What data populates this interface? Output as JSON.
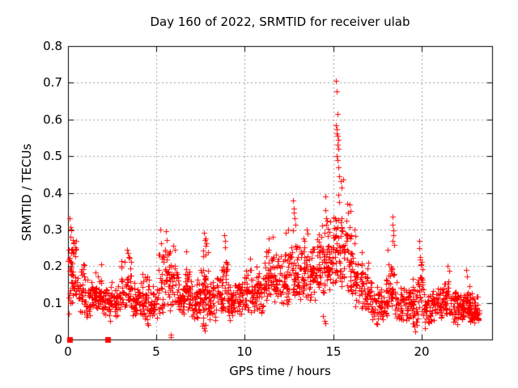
{
  "window": {
    "background": "#ffffff",
    "text_color": "#000000",
    "border_color": "#000000"
  },
  "chart": {
    "title": "Day 160 of 2022, SRMTID for receiver ulab",
    "xlabel": "GPS time / hours",
    "ylabel": "SRMTID / TECUs"
  },
  "chart_data": {
    "type": "scatter",
    "title": "Day 160 of 2022, SRMTID for receiver ulab",
    "xlabel": "GPS time / hours",
    "ylabel": "SRMTID / TECUs",
    "xlim": [
      0,
      24
    ],
    "ylim": [
      0,
      0.8
    ],
    "xticks": {
      "values": [
        0,
        5,
        10,
        15,
        20
      ],
      "labels": [
        "0",
        "5",
        "10",
        "15",
        "20"
      ]
    },
    "yticks": {
      "values": [
        0,
        0.1,
        0.2,
        0.3,
        0.4,
        0.5,
        0.6,
        0.7,
        0.8
      ],
      "labels": [
        "0",
        "0.1",
        "0.2",
        "0.3",
        "0.4",
        "0.5",
        "0.6",
        "0.7",
        "0.8"
      ]
    },
    "grid": true,
    "grid_style": "dashed",
    "grid_color": "#a0a0a0",
    "legend": "none",
    "marker": {
      "shape": "plus",
      "color": "#ff0000",
      "size": 7
    },
    "seed": 42,
    "bands_format": "[h_start, h_end, y_min, y_max, count]",
    "bands": [
      [
        0.02,
        0.15,
        0.05,
        0.33,
        12
      ],
      [
        0.1,
        0.45,
        0.2,
        0.3,
        14
      ],
      [
        0.15,
        0.6,
        0.08,
        0.26,
        30
      ],
      [
        0.6,
        1.0,
        0.07,
        0.22,
        34
      ],
      [
        1.0,
        1.5,
        0.06,
        0.17,
        40
      ],
      [
        1.5,
        2.0,
        0.06,
        0.2,
        40
      ],
      [
        2.0,
        2.5,
        0.05,
        0.16,
        40
      ],
      [
        2.5,
        3.0,
        0.06,
        0.16,
        36
      ],
      [
        3.0,
        3.6,
        0.07,
        0.24,
        44
      ],
      [
        3.6,
        4.1,
        0.05,
        0.16,
        40
      ],
      [
        4.1,
        4.6,
        0.04,
        0.19,
        40
      ],
      [
        4.6,
        5.1,
        0.05,
        0.16,
        38
      ],
      [
        5.1,
        5.45,
        0.07,
        0.28,
        26
      ],
      [
        5.45,
        5.75,
        0.08,
        0.3,
        26
      ],
      [
        5.75,
        6.25,
        0.07,
        0.27,
        36
      ],
      [
        6.25,
        6.6,
        0.06,
        0.18,
        32
      ],
      [
        6.6,
        6.95,
        0.07,
        0.24,
        30
      ],
      [
        6.95,
        7.35,
        0.05,
        0.18,
        34
      ],
      [
        7.35,
        7.62,
        0.06,
        0.22,
        26
      ],
      [
        7.62,
        7.95,
        0.03,
        0.28,
        38
      ],
      [
        7.95,
        8.4,
        0.05,
        0.17,
        36
      ],
      [
        8.4,
        8.75,
        0.06,
        0.2,
        30
      ],
      [
        8.75,
        9.05,
        0.07,
        0.27,
        26
      ],
      [
        9.05,
        9.55,
        0.05,
        0.18,
        40
      ],
      [
        9.55,
        10.05,
        0.06,
        0.18,
        40
      ],
      [
        10.05,
        10.55,
        0.07,
        0.21,
        40
      ],
      [
        10.55,
        11.05,
        0.07,
        0.2,
        40
      ],
      [
        11.05,
        11.55,
        0.08,
        0.26,
        42
      ],
      [
        11.55,
        12.05,
        0.08,
        0.26,
        42
      ],
      [
        12.05,
        12.55,
        0.09,
        0.28,
        42
      ],
      [
        12.55,
        13.05,
        0.1,
        0.31,
        42
      ],
      [
        13.05,
        13.55,
        0.1,
        0.29,
        42
      ],
      [
        13.55,
        14.05,
        0.1,
        0.28,
        42
      ],
      [
        14.05,
        14.55,
        0.1,
        0.31,
        44
      ],
      [
        14.55,
        15.0,
        0.12,
        0.34,
        44
      ],
      [
        15.0,
        15.4,
        0.15,
        0.42,
        40
      ],
      [
        15.4,
        15.8,
        0.12,
        0.37,
        34
      ],
      [
        15.8,
        16.2,
        0.1,
        0.35,
        34
      ],
      [
        16.2,
        16.7,
        0.08,
        0.25,
        38
      ],
      [
        16.7,
        17.2,
        0.06,
        0.2,
        38
      ],
      [
        17.2,
        17.7,
        0.04,
        0.16,
        38
      ],
      [
        17.7,
        18.1,
        0.05,
        0.17,
        34
      ],
      [
        18.1,
        18.48,
        0.08,
        0.25,
        30
      ],
      [
        18.48,
        19.0,
        0.05,
        0.16,
        38
      ],
      [
        19.0,
        19.5,
        0.04,
        0.15,
        38
      ],
      [
        19.5,
        19.82,
        0.03,
        0.17,
        28
      ],
      [
        19.82,
        20.12,
        0.07,
        0.25,
        26
      ],
      [
        20.12,
        20.6,
        0.04,
        0.13,
        38
      ],
      [
        20.6,
        21.1,
        0.05,
        0.16,
        40
      ],
      [
        21.1,
        21.6,
        0.06,
        0.19,
        40
      ],
      [
        21.6,
        22.1,
        0.04,
        0.15,
        40
      ],
      [
        22.1,
        22.45,
        0.05,
        0.14,
        34
      ],
      [
        22.45,
        22.75,
        0.06,
        0.18,
        32
      ],
      [
        22.75,
        23.25,
        0.04,
        0.13,
        56
      ]
    ],
    "points": [
      [
        0.1,
        0.33
      ],
      [
        0.16,
        0.307
      ],
      [
        0.2,
        0.298
      ],
      [
        0.3,
        0.265
      ],
      [
        0.4,
        0.252
      ],
      [
        1.9,
        0.205
      ],
      [
        3.35,
        0.245
      ],
      [
        3.4,
        0.235
      ],
      [
        3.45,
        0.225
      ],
      [
        4.5,
        0.045
      ],
      [
        4.55,
        0.04
      ],
      [
        5.2,
        0.3
      ],
      [
        5.55,
        0.295
      ],
      [
        5.6,
        0.27
      ],
      [
        5.95,
        0.255
      ],
      [
        6.05,
        0.245
      ],
      [
        6.7,
        0.24
      ],
      [
        7.7,
        0.29
      ],
      [
        7.74,
        0.27
      ],
      [
        7.78,
        0.255
      ],
      [
        7.65,
        0.045
      ],
      [
        7.7,
        0.03
      ],
      [
        7.75,
        0.025
      ],
      [
        7.8,
        0.04
      ],
      [
        8.85,
        0.285
      ],
      [
        8.88,
        0.268
      ],
      [
        8.9,
        0.252
      ],
      [
        10.3,
        0.22
      ],
      [
        11.35,
        0.275
      ],
      [
        11.6,
        0.28
      ],
      [
        12.3,
        0.29
      ],
      [
        12.45,
        0.3
      ],
      [
        12.75,
        0.38
      ],
      [
        12.78,
        0.358
      ],
      [
        12.8,
        0.345
      ],
      [
        12.84,
        0.33
      ],
      [
        12.88,
        0.312
      ],
      [
        13.5,
        0.3
      ],
      [
        13.56,
        0.288
      ],
      [
        14.4,
        0.31
      ],
      [
        14.55,
        0.39
      ],
      [
        14.58,
        0.352
      ],
      [
        14.62,
        0.33
      ],
      [
        14.7,
        0.302
      ],
      [
        14.45,
        0.065
      ],
      [
        14.5,
        0.05
      ],
      [
        14.56,
        0.044
      ],
      [
        15.18,
        0.705
      ],
      [
        15.21,
        0.676
      ],
      [
        15.25,
        0.615
      ],
      [
        15.15,
        0.585
      ],
      [
        15.19,
        0.574
      ],
      [
        15.22,
        0.563
      ],
      [
        15.26,
        0.556
      ],
      [
        15.29,
        0.545
      ],
      [
        15.24,
        0.532
      ],
      [
        15.28,
        0.52
      ],
      [
        15.2,
        0.5
      ],
      [
        15.27,
        0.49
      ],
      [
        15.31,
        0.47
      ],
      [
        15.36,
        0.445
      ],
      [
        15.45,
        0.432
      ],
      [
        15.55,
        0.436
      ],
      [
        15.5,
        0.415
      ],
      [
        15.8,
        0.37
      ],
      [
        15.86,
        0.346
      ],
      [
        15.95,
        0.368
      ],
      [
        16.0,
        0.35
      ],
      [
        16.2,
        0.3
      ],
      [
        16.26,
        0.282
      ],
      [
        17.0,
        0.21
      ],
      [
        18.35,
        0.335
      ],
      [
        18.38,
        0.312
      ],
      [
        18.41,
        0.298
      ],
      [
        18.43,
        0.284
      ],
      [
        18.37,
        0.268
      ],
      [
        18.45,
        0.258
      ],
      [
        19.6,
        0.035
      ],
      [
        19.66,
        0.022
      ],
      [
        19.72,
        0.04
      ],
      [
        20.2,
        0.03
      ],
      [
        19.86,
        0.268
      ],
      [
        19.9,
        0.25
      ],
      [
        19.92,
        0.224
      ],
      [
        19.97,
        0.205
      ],
      [
        21.5,
        0.2
      ],
      [
        21.56,
        0.188
      ],
      [
        22.55,
        0.19
      ],
      [
        22.6,
        0.172
      ],
      [
        5.8,
        0.006
      ],
      [
        5.8,
        0.014
      ]
    ],
    "zero_squares": [
      0.09,
      2.25
    ]
  }
}
